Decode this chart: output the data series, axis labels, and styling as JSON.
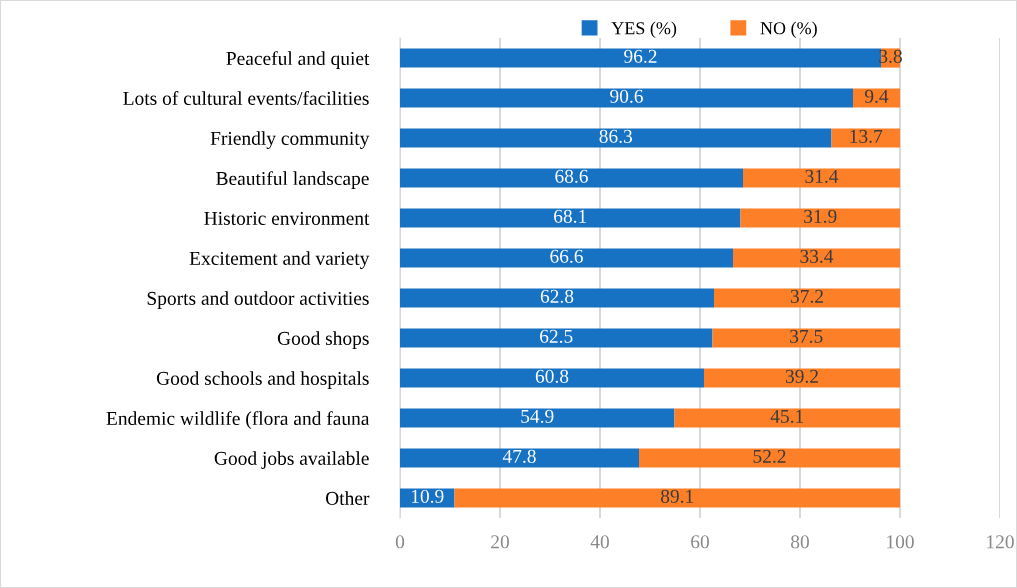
{
  "chart_data": {
    "type": "bar",
    "orientation": "horizontal",
    "stacked": true,
    "categories": [
      "Peaceful and quiet",
      "Lots of cultural events/facilities",
      "Friendly community",
      "Beautiful landscape",
      "Historic environment",
      "Excitement and variety",
      "Sports and outdoor activities",
      "Good shops",
      "Good schools and hospitals",
      "Endemic wildlife (flora and fauna",
      "Good jobs available",
      "Other"
    ],
    "series": [
      {
        "name": "YES (%)",
        "color": "#1872c4",
        "values": [
          96.2,
          90.6,
          86.3,
          68.6,
          68.1,
          66.6,
          62.8,
          62.5,
          60.8,
          54.9,
          47.8,
          10.9
        ]
      },
      {
        "name": "NO (%)",
        "color": "#fd7f27",
        "values": [
          3.8,
          9.4,
          13.7,
          31.4,
          31.9,
          33.4,
          37.2,
          37.5,
          39.2,
          45.1,
          52.2,
          89.1
        ]
      }
    ],
    "xlim": [
      0,
      120
    ],
    "xticks": [
      0,
      20,
      40,
      60,
      80,
      100,
      120
    ],
    "grid": "x",
    "legend": "top",
    "data_labels": true
  }
}
